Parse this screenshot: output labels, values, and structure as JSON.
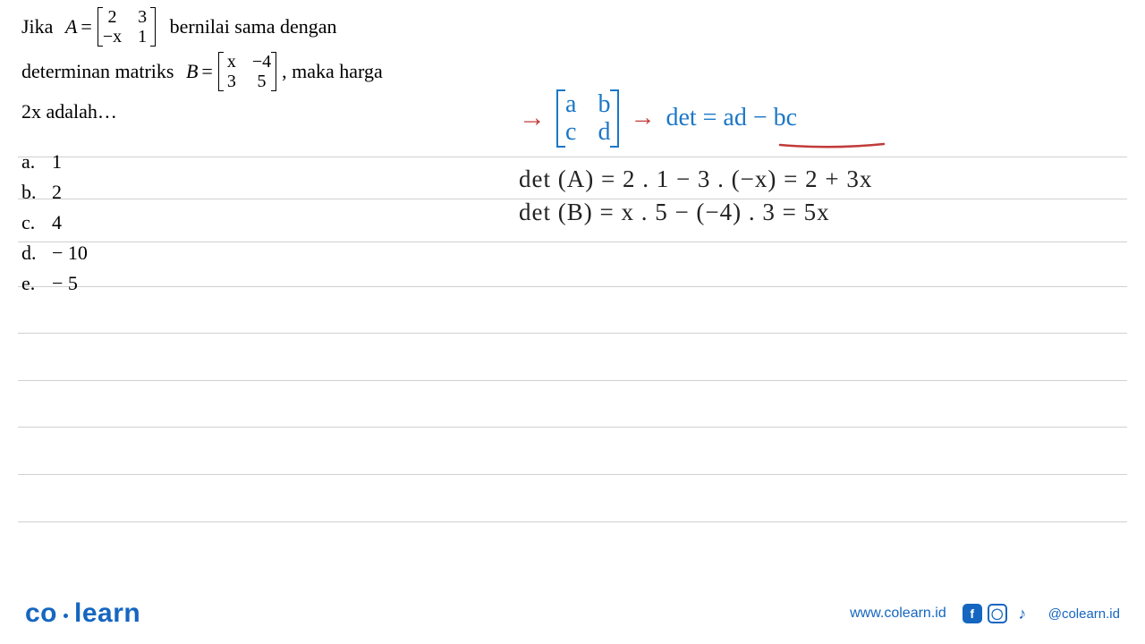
{
  "ruled_lines_y": [
    175,
    222,
    270,
    320,
    372,
    425,
    477,
    530,
    583
  ],
  "question": {
    "line1_pre": "Jika",
    "var_a": "A",
    "eq": "=",
    "matrix_a": [
      [
        "2",
        "3"
      ],
      [
        "−x",
        "1"
      ]
    ],
    "line1_post": "bernilai   sama   dengan",
    "line2_pre": "determinan matriks",
    "var_b": "B",
    "matrix_b": [
      [
        "x",
        "−4"
      ],
      [
        "3",
        "5"
      ]
    ],
    "line2_post": ", maka harga",
    "line3": "2x adalah…"
  },
  "answers": [
    {
      "label": "a.",
      "text": "1"
    },
    {
      "label": "b.",
      "text": "2"
    },
    {
      "label": "c.",
      "text": "4"
    },
    {
      "label": "d.",
      "text": "− 10"
    },
    {
      "label": "e.",
      "text": "− 5"
    }
  ],
  "handwriting": {
    "arrow1": "→",
    "generic_matrix": [
      [
        "a",
        "b"
      ],
      [
        "c",
        "d"
      ]
    ],
    "arrow2": "→",
    "det_formula": "det = ad − bc",
    "detA": "det (A)  =  2 . 1 − 3 . (−x)  =  2 + 3x",
    "detB": "det (B)  =  x . 5 − (−4) . 3  =  5x",
    "colors": {
      "blue": "#1b77c7",
      "red": "#c23a3a",
      "ink": "#222222"
    },
    "underline_color": "#c23a3a"
  },
  "footer": {
    "logo_part1": "co",
    "logo_part2": "learn",
    "url": "www.colearn.id",
    "handle": "@colearn.id",
    "brand_color": "#1566c0"
  }
}
